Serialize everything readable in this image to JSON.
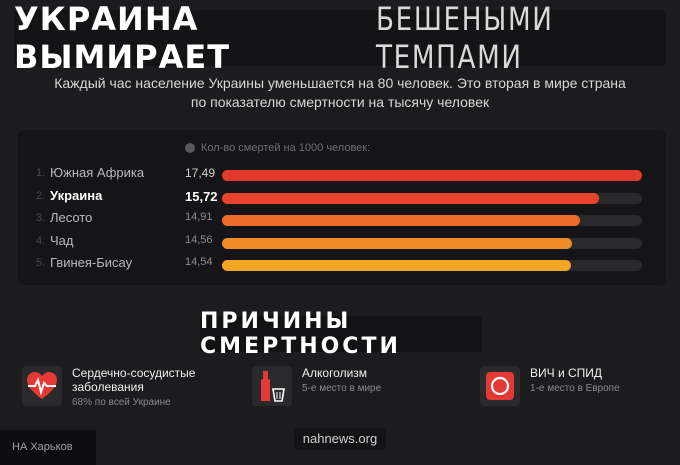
{
  "header": {
    "title_bold": "УКРАИНА ВЫМИРАЕТ",
    "title_thin": "БЕШЕНЫМИ ТЕМПАМИ",
    "subtitle_line1": "Каждый час население Украины уменьшается на 80 человек. Это вторая в мире страна",
    "subtitle_line2": "по показателю смертности на тысячу человек"
  },
  "chart_data": {
    "type": "bar",
    "legend": "Кол-во смертей на 1000 человек:",
    "ranks": [
      "1.",
      "2.",
      "3.",
      "4.",
      "5."
    ],
    "categories": [
      "Южная Африка",
      "Украина",
      "Лесото",
      "Чад",
      "Гвинея-Бисау"
    ],
    "value_labels": [
      "17,49",
      "15,72",
      "14,91",
      "14,56",
      "14,54"
    ],
    "values": [
      17.49,
      15.72,
      14.91,
      14.56,
      14.54
    ],
    "highlight_index": 1,
    "scale_max": 17.49,
    "colors": [
      "#e0382b",
      "#e6442c",
      "#ec6a2a",
      "#f08c28",
      "#f5a623"
    ],
    "track_color": "#2a2a2d"
  },
  "causes": {
    "title": "ПРИЧИНЫ СМЕРТНОСТИ",
    "items": [
      {
        "icon": "heart-pulse-icon",
        "name_line1": "Сердечно-сосудистые",
        "name_line2": "заболевания",
        "sub": "68% по всей Украине"
      },
      {
        "icon": "bottle-glass-icon",
        "name_line1": "Алкоголизм",
        "name_line2": "",
        "sub": "5-е место в мире"
      },
      {
        "icon": "circle-badge-icon",
        "name_line1": "ВИЧ и СПИД",
        "name_line2": "",
        "sub": "1-е место в Европе"
      }
    ],
    "accent": "#e53935"
  },
  "footer": {
    "site": "nahnews.org",
    "watermark": "НА Харьков"
  }
}
